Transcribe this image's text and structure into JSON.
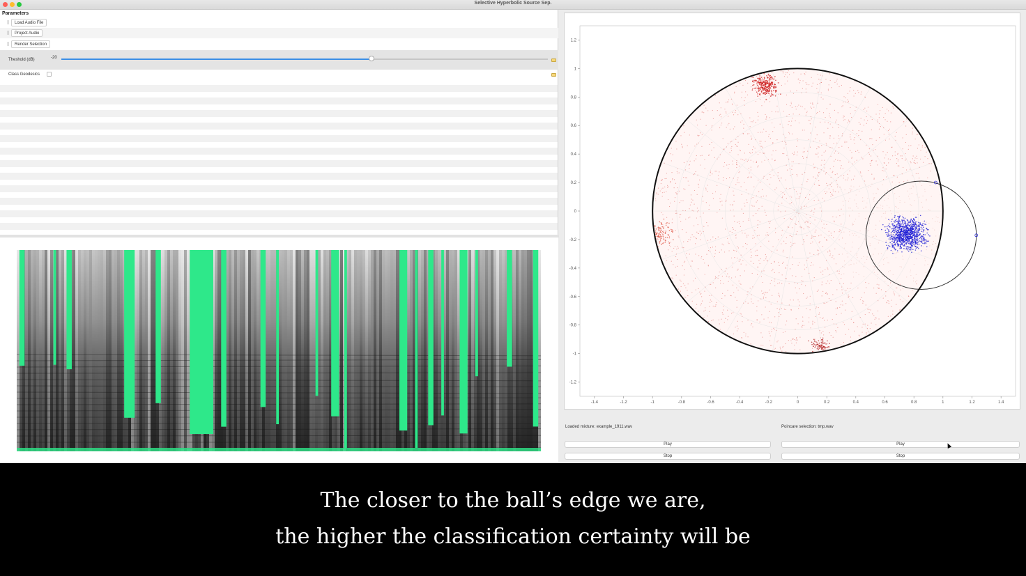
{
  "window": {
    "title": "Selective Hyperbolic Source Sep."
  },
  "colors": {
    "accent": "#3a8ee6",
    "class_a": "#cc1a1a",
    "class_b": "#1b1bd6",
    "spectrogram_highlight": "#2ee88a"
  },
  "params": {
    "header": "Parameters",
    "load_label": "Load Audio File",
    "project_label": "Project Audio",
    "render_label": "Render Selection",
    "threshold_label": "Theshold (dB)",
    "threshold_value": "-20",
    "threshold_fraction": 0.637,
    "geodesics_label": "Class Geodesics",
    "geodesics_checked": false
  },
  "spectrogram": {
    "highlight_columns_fraction": [
      [
        0.005,
        0.015
      ],
      [
        0.07,
        0.075
      ],
      [
        0.095,
        0.105
      ],
      [
        0.205,
        0.225
      ],
      [
        0.265,
        0.275
      ],
      [
        0.33,
        0.375
      ],
      [
        0.39,
        0.4
      ],
      [
        0.465,
        0.475
      ],
      [
        0.495,
        0.5
      ],
      [
        0.57,
        0.575
      ],
      [
        0.6,
        0.615
      ],
      [
        0.625,
        0.63
      ],
      [
        0.73,
        0.745
      ],
      [
        0.76,
        0.765
      ],
      [
        0.785,
        0.795
      ],
      [
        0.81,
        0.815
      ],
      [
        0.845,
        0.86
      ],
      [
        0.875,
        0.88
      ],
      [
        0.935,
        0.945
      ],
      [
        0.985,
        0.995
      ]
    ]
  },
  "chart_data": {
    "type": "scatter",
    "title": "",
    "xlabel": "",
    "ylabel": "",
    "xlim": [
      -1.5,
      1.5
    ],
    "ylim": [
      -1.3,
      1.3
    ],
    "x_ticks": [
      "-1.4",
      "-1.2",
      "-1",
      "-0.8",
      "-0.6",
      "-0.4",
      "-0.2",
      "0",
      "0.2",
      "0.4",
      "0.6",
      "0.8",
      "1",
      "1.2",
      "1.4"
    ],
    "x_tick_values": [
      -1.4,
      -1.2,
      -1,
      -0.8,
      -0.6,
      -0.4,
      -0.2,
      0,
      0.2,
      0.4,
      0.6,
      0.8,
      1,
      1.2,
      1.4
    ],
    "y_ticks": [
      "1.2",
      "1",
      "0.8",
      "0.6",
      "0.4",
      "0.2",
      "0",
      "-0.2",
      "-0.4",
      "-0.6",
      "-0.8",
      "-1",
      "-1.2"
    ],
    "y_tick_values": [
      1.2,
      1,
      0.8,
      0.6,
      0.4,
      0.2,
      0,
      -0.2,
      -0.4,
      -0.6,
      -0.8,
      -1,
      -1.2
    ],
    "poincare_disk": {
      "center": [
        0,
        0
      ],
      "radius": 1
    },
    "selection_circle": {
      "center": [
        0.85,
        -0.17
      ],
      "radius": 0.38
    },
    "clusters": [
      {
        "color": "#cc1a1a",
        "center": [
          -0.22,
          0.88
        ],
        "spread": 0.07,
        "count": 260
      },
      {
        "color": "#e05a4a",
        "center": [
          -0.95,
          -0.15
        ],
        "spread": 0.08,
        "count": 120
      },
      {
        "color": "#b32020",
        "center": [
          0.15,
          -0.95
        ],
        "spread": 0.06,
        "count": 90
      },
      {
        "color": "#1b1bd6",
        "center": [
          0.75,
          -0.16
        ],
        "spread": 0.12,
        "count": 900
      }
    ]
  },
  "controls": {
    "loaded_mixture": "Loaded mixture: example_1911.wav",
    "poincare_selection": "Poincare selection: tmp.wav",
    "play_label": "Play",
    "stop_label": "Stop"
  },
  "caption": {
    "line1": "The closer to the ball’s edge we are,",
    "line2": "the higher the classification certainty will be"
  }
}
